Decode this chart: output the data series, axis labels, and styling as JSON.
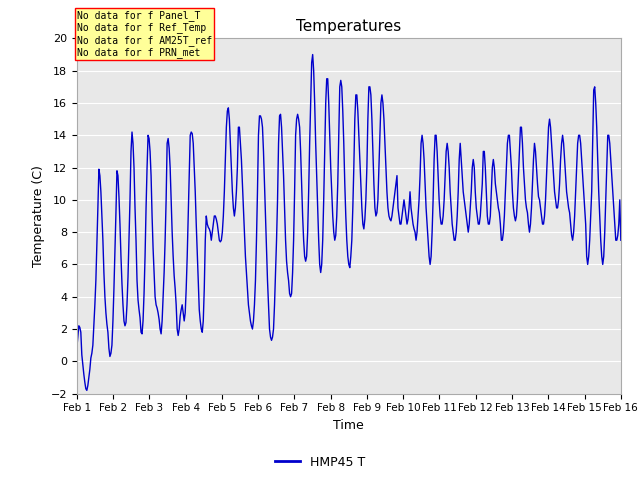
{
  "title": "Temperatures",
  "xlabel": "Time",
  "ylabel": "Temperature (C)",
  "line_color": "#0000cc",
  "line_width": 1.0,
  "ylim": [
    -2,
    20
  ],
  "yticks": [
    -2,
    0,
    2,
    4,
    6,
    8,
    10,
    12,
    14,
    16,
    18,
    20
  ],
  "xtick_labels": [
    "Feb 1",
    "Feb 2",
    "Feb 3",
    "Feb 4",
    "Feb 5",
    "Feb 6",
    "Feb 7",
    "Feb 8",
    "Feb 9",
    "Feb 10",
    "Feb 11",
    "Feb 12",
    "Feb 13",
    "Feb 14",
    "Feb 15",
    "Feb 16"
  ],
  "legend_label": "HMP45 T",
  "legend_color": "#0000cc",
  "annotations": [
    "No data for f Panel_T",
    "No data for f Ref_Temp",
    "No data for f AM25T_ref",
    "No data for f PRN_met"
  ],
  "annotation_box_color": "#ffff99",
  "annotation_box_edge": "#ff0000",
  "fig_bg_color": "#ffffff",
  "plot_bg_color": "#e8e8e8",
  "grid_color": "#ffffff",
  "temperatures": [
    0.8,
    1.5,
    2.2,
    2.1,
    1.8,
    0.4,
    -0.2,
    -0.8,
    -1.3,
    -1.7,
    -1.8,
    -1.5,
    -1.0,
    -0.5,
    0.2,
    0.5,
    1.0,
    2.2,
    3.5,
    5.0,
    7.2,
    9.5,
    11.9,
    11.5,
    10.5,
    9.0,
    7.5,
    5.5,
    4.0,
    3.0,
    2.3,
    1.8,
    0.8,
    0.3,
    0.5,
    1.0,
    2.5,
    4.5,
    6.8,
    9.2,
    11.8,
    11.5,
    10.2,
    8.5,
    6.5,
    4.8,
    3.5,
    2.5,
    2.2,
    2.4,
    3.5,
    5.2,
    7.5,
    10.0,
    13.0,
    14.2,
    13.5,
    12.0,
    9.5,
    7.5,
    5.0,
    3.8,
    3.2,
    2.7,
    1.8,
    1.7,
    2.5,
    4.2,
    6.5,
    9.5,
    12.0,
    14.0,
    13.8,
    13.0,
    11.5,
    9.0,
    7.0,
    5.5,
    4.0,
    3.5,
    3.3,
    3.0,
    2.6,
    2.0,
    1.7,
    2.5,
    4.0,
    5.5,
    7.5,
    10.0,
    13.5,
    13.8,
    13.2,
    12.0,
    10.0,
    8.0,
    6.5,
    5.3,
    4.5,
    3.5,
    2.0,
    1.6,
    2.0,
    2.8,
    3.2,
    3.5,
    3.0,
    2.5,
    3.0,
    4.5,
    6.5,
    9.0,
    11.5,
    14.0,
    14.2,
    14.1,
    13.5,
    12.0,
    10.5,
    8.5,
    6.8,
    5.0,
    3.2,
    2.5,
    2.0,
    1.8,
    2.5,
    4.5,
    7.5,
    9.0,
    8.5,
    8.3,
    8.2,
    8.0,
    7.5,
    8.0,
    8.5,
    9.0,
    9.0,
    8.8,
    8.5,
    8.0,
    7.5,
    7.4,
    7.5,
    8.0,
    9.0,
    10.5,
    12.5,
    14.5,
    15.5,
    15.7,
    15.0,
    13.5,
    12.0,
    10.5,
    9.5,
    9.0,
    9.5,
    10.5,
    12.0,
    14.5,
    14.5,
    13.5,
    12.5,
    11.0,
    9.5,
    8.0,
    6.5,
    5.5,
    4.5,
    3.5,
    3.0,
    2.5,
    2.2,
    2.0,
    2.5,
    3.5,
    5.0,
    7.5,
    10.5,
    14.0,
    15.2,
    15.2,
    15.0,
    14.5,
    13.0,
    11.0,
    9.0,
    7.0,
    5.0,
    3.5,
    2.0,
    1.5,
    1.3,
    1.5,
    2.0,
    3.5,
    5.5,
    7.5,
    10.0,
    13.5,
    15.2,
    15.3,
    14.5,
    13.0,
    11.5,
    9.5,
    7.5,
    6.2,
    5.5,
    5.0,
    4.2,
    4.0,
    4.2,
    5.5,
    7.5,
    10.5,
    14.0,
    15.0,
    15.3,
    15.0,
    14.5,
    13.0,
    11.0,
    9.0,
    7.5,
    6.5,
    6.2,
    6.5,
    8.0,
    10.5,
    13.5,
    16.0,
    18.5,
    19.0,
    18.0,
    16.0,
    13.5,
    11.5,
    9.5,
    7.5,
    6.0,
    5.5,
    6.0,
    7.5,
    10.0,
    13.0,
    16.0,
    17.5,
    17.5,
    16.0,
    14.0,
    12.0,
    10.5,
    9.0,
    8.0,
    7.5,
    7.8,
    9.0,
    11.0,
    14.0,
    17.0,
    17.4,
    17.0,
    15.5,
    13.5,
    11.0,
    9.0,
    7.5,
    6.5,
    6.0,
    5.8,
    6.5,
    7.5,
    9.5,
    12.0,
    15.0,
    16.5,
    16.5,
    15.5,
    14.0,
    12.5,
    11.0,
    9.5,
    8.5,
    8.2,
    8.8,
    10.0,
    12.0,
    15.0,
    17.0,
    17.0,
    16.5,
    15.0,
    13.0,
    11.0,
    9.5,
    9.0,
    9.2,
    10.0,
    12.0,
    14.0,
    16.0,
    16.5,
    16.0,
    15.0,
    13.5,
    12.0,
    10.5,
    9.5,
    9.0,
    8.8,
    8.7,
    9.0,
    9.5,
    10.0,
    10.5,
    11.0,
    11.5,
    9.5,
    9.0,
    8.5,
    8.5,
    9.0,
    9.5,
    10.0,
    9.5,
    9.0,
    8.5,
    8.8,
    9.5,
    10.5,
    9.5,
    9.0,
    8.5,
    8.2,
    8.0,
    7.5,
    8.0,
    9.0,
    10.0,
    11.5,
    13.5,
    14.0,
    13.5,
    12.5,
    11.0,
    9.5,
    8.5,
    7.5,
    6.5,
    6.0,
    6.5,
    8.0,
    10.0,
    12.5,
    14.0,
    14.0,
    13.0,
    11.5,
    10.0,
    9.0,
    8.5,
    8.5,
    9.0,
    10.0,
    11.5,
    13.0,
    13.5,
    13.0,
    12.0,
    10.5,
    9.5,
    8.5,
    8.0,
    7.5,
    7.5,
    8.0,
    9.0,
    10.5,
    12.5,
    13.5,
    12.5,
    11.5,
    10.5,
    10.0,
    9.5,
    9.0,
    8.5,
    8.0,
    8.5,
    9.5,
    10.5,
    12.0,
    12.5,
    12.0,
    10.5,
    9.5,
    9.0,
    8.5,
    8.5,
    9.0,
    10.0,
    11.0,
    13.0,
    13.0,
    12.0,
    10.5,
    9.0,
    8.5,
    8.5,
    9.0,
    10.5,
    12.0,
    12.5,
    12.0,
    11.0,
    10.5,
    10.0,
    9.5,
    9.2,
    8.5,
    7.5,
    7.5,
    8.0,
    9.0,
    10.5,
    12.0,
    13.5,
    14.0,
    14.0,
    13.0,
    12.0,
    10.5,
    9.5,
    9.0,
    8.7,
    9.0,
    10.0,
    11.5,
    13.0,
    14.5,
    14.5,
    13.5,
    12.0,
    11.0,
    10.0,
    9.5,
    9.2,
    8.5,
    8.0,
    8.5,
    9.5,
    11.0,
    12.5,
    13.5,
    13.0,
    12.0,
    11.0,
    10.2,
    10.0,
    9.5,
    9.0,
    8.5,
    8.5,
    9.0,
    10.0,
    11.5,
    13.0,
    14.5,
    15.0,
    14.5,
    13.5,
    12.5,
    11.5,
    10.5,
    10.0,
    9.5,
    9.5,
    10.0,
    11.0,
    12.5,
    13.5,
    14.0,
    13.5,
    12.5,
    11.5,
    10.5,
    10.0,
    9.5,
    9.2,
    8.5,
    7.8,
    7.5,
    8.0,
    9.0,
    10.5,
    12.0,
    13.5,
    14.0,
    14.0,
    13.5,
    12.5,
    11.5,
    10.5,
    9.5,
    8.5,
    6.5,
    6.0,
    6.5,
    7.5,
    9.0,
    10.5,
    13.5,
    16.8,
    17.0,
    16.0,
    14.5,
    12.5,
    10.5,
    9.0,
    7.5,
    6.5,
    6.0,
    6.5,
    8.0,
    10.0,
    12.0,
    14.0,
    14.0,
    13.5,
    12.5,
    11.5,
    10.5,
    9.5,
    8.5,
    7.5,
    7.5,
    7.8,
    8.5,
    10.0,
    7.5
  ]
}
